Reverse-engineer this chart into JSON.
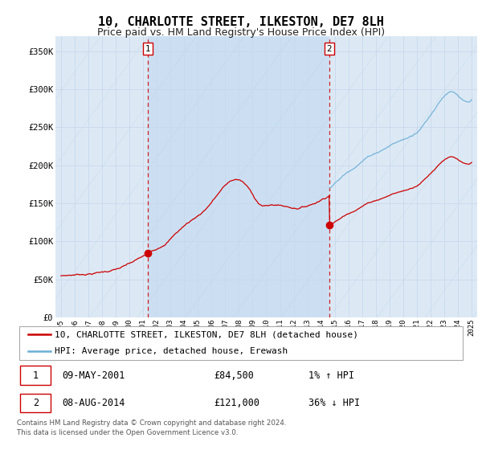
{
  "title": "10, CHARLOTTE STREET, ILKESTON, DE7 8LH",
  "subtitle": "Price paid vs. HM Land Registry's House Price Index (HPI)",
  "ylim": [
    0,
    370000
  ],
  "yticks": [
    0,
    50000,
    100000,
    150000,
    200000,
    250000,
    300000,
    350000
  ],
  "ytick_labels": [
    "£0",
    "£50K",
    "£100K",
    "£150K",
    "£200K",
    "£250K",
    "£300K",
    "£350K"
  ],
  "xlim_start": 1994.6,
  "xlim_end": 2025.4,
  "xtick_years": [
    1995,
    1996,
    1997,
    1998,
    1999,
    2000,
    2001,
    2002,
    2003,
    2004,
    2005,
    2006,
    2007,
    2008,
    2009,
    2010,
    2011,
    2012,
    2013,
    2014,
    2015,
    2016,
    2017,
    2018,
    2019,
    2020,
    2021,
    2022,
    2023,
    2024,
    2025
  ],
  "background_color": "#ffffff",
  "plot_bg_color": "#dce9f5",
  "plot_bg_between": "#c8daf0",
  "grid_color": "#b8cfe8",
  "red_line_color": "#cc0000",
  "blue_line_color": "#6baed6",
  "sale1_year": 2001.35,
  "sale1_y": 84500,
  "sale2_year": 2014.6,
  "sale2_y": 121000,
  "legend_label1": "10, CHARLOTTE STREET, ILKESTON, DE7 8LH (detached house)",
  "legend_label2": "HPI: Average price, detached house, Erewash",
  "table_row1": [
    "1",
    "09-MAY-2001",
    "£84,500",
    "1% ↑ HPI"
  ],
  "table_row2": [
    "2",
    "08-AUG-2014",
    "£121,000",
    "36% ↓ HPI"
  ],
  "footnote": "Contains HM Land Registry data © Crown copyright and database right 2024.\nThis data is licensed under the Open Government Licence v3.0.",
  "title_fontsize": 11,
  "subtitle_fontsize": 9,
  "tick_fontsize": 7.5,
  "legend_fontsize": 8,
  "table_fontsize": 8.5
}
